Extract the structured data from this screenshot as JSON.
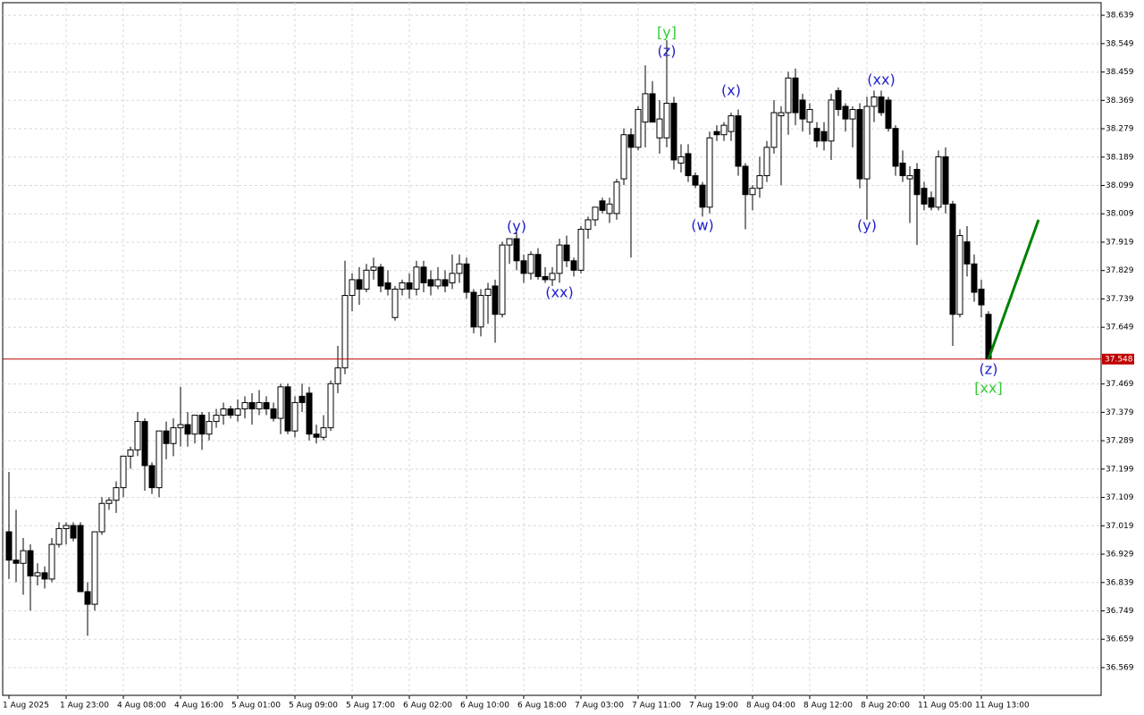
{
  "chart_data": {
    "type": "candlestick",
    "categories": [
      "1 Aug 2025",
      null,
      null,
      null,
      null,
      null,
      null,
      null,
      "1 Aug 23:00",
      null,
      null,
      null,
      null,
      null,
      null,
      null,
      "4 Aug 08:00",
      null,
      null,
      null,
      null,
      null,
      null,
      null,
      "4 Aug 16:00",
      null,
      null,
      null,
      null,
      null,
      null,
      null,
      "5 Aug 01:00",
      null,
      null,
      null,
      null,
      null,
      null,
      null,
      "5 Aug 09:00",
      null,
      null,
      null,
      null,
      null,
      null,
      null,
      "5 Aug 17:00",
      null,
      null,
      null,
      null,
      null,
      null,
      null,
      "6 Aug 02:00",
      null,
      null,
      null,
      null,
      null,
      null,
      null,
      "6 Aug 10:00",
      null,
      null,
      null,
      null,
      null,
      null,
      null,
      "6 Aug 18:00",
      null,
      null,
      null,
      null,
      null,
      null,
      null,
      "7 Aug 03:00",
      null,
      null,
      null,
      null,
      null,
      null,
      null,
      "7 Aug 11:00",
      null,
      null,
      null,
      null,
      null,
      null,
      null,
      "7 Aug 19:00",
      null,
      null,
      null,
      null,
      null,
      null,
      null,
      "8 Aug 04:00",
      null,
      null,
      null,
      null,
      null,
      null,
      null,
      "8 Aug 12:00",
      null,
      null,
      null,
      null,
      null,
      null,
      null,
      "8 Aug 20:00",
      null,
      null,
      null,
      null,
      null,
      null,
      null,
      "11 Aug 05:00",
      null,
      null,
      null,
      null,
      null,
      null,
      null,
      "11 Aug 13:00",
      null
    ],
    "open": [
      37.0,
      36.91,
      36.9,
      36.94,
      36.86,
      36.87,
      36.85,
      36.96,
      37.01,
      37.02,
      37.02,
      36.81,
      36.77,
      37.0,
      37.09,
      37.1,
      37.14,
      37.24,
      37.26,
      37.35,
      37.21,
      37.14,
      37.32,
      37.28,
      37.33,
      37.34,
      37.31,
      37.37,
      37.31,
      37.35,
      37.37,
      37.39,
      37.37,
      37.39,
      37.41,
      37.39,
      37.41,
      37.39,
      37.36,
      37.46,
      37.32,
      37.43,
      37.44,
      37.31,
      37.3,
      37.33,
      37.47,
      37.52,
      37.75,
      37.8,
      37.77,
      37.83,
      37.84,
      37.79,
      37.68,
      37.77,
      37.79,
      37.77,
      37.84,
      37.8,
      37.78,
      37.8,
      37.79,
      37.82,
      37.85,
      37.76,
      37.65,
      37.75,
      37.78,
      37.69,
      37.91,
      37.93,
      37.86,
      37.82,
      37.88,
      37.81,
      37.8,
      37.82,
      37.91,
      37.86,
      37.83,
      37.96,
      37.99,
      38.05,
      38.01,
      38.01,
      38.12,
      38.26,
      38.22,
      38.3,
      38.39,
      38.25,
      38.25,
      38.36,
      38.17,
      38.2,
      38.13,
      38.1,
      38.03,
      38.27,
      38.26,
      38.27,
      38.32,
      38.16,
      38.07,
      38.09,
      38.13,
      38.22,
      38.32,
      38.33,
      38.44,
      38.37,
      38.3,
      38.28,
      38.27,
      38.24,
      38.4,
      38.35,
      38.31,
      38.34,
      38.12,
      38.35,
      38.38,
      38.37,
      38.28,
      38.17,
      38.12,
      38.15,
      38.09,
      38.06,
      38.03,
      38.19,
      38.04,
      37.69,
      37.92,
      37.85,
      37.77,
      37.69
    ],
    "high": [
      37.19,
      37.07,
      36.98,
      36.96,
      36.9,
      36.89,
      36.98,
      37.03,
      37.03,
      37.03,
      37.03,
      36.84,
      37.0,
      37.11,
      37.11,
      37.16,
      37.24,
      37.27,
      37.38,
      37.36,
      37.22,
      37.32,
      37.35,
      37.36,
      37.46,
      37.38,
      37.37,
      37.38,
      37.38,
      37.39,
      37.41,
      37.4,
      37.42,
      37.43,
      37.44,
      37.45,
      37.43,
      37.41,
      37.47,
      37.47,
      37.43,
      37.47,
      37.46,
      37.34,
      37.37,
      37.48,
      37.59,
      37.86,
      37.82,
      37.84,
      37.85,
      37.87,
      37.85,
      37.83,
      37.78,
      37.8,
      37.82,
      37.86,
      37.86,
      37.83,
      37.84,
      37.83,
      37.88,
      37.88,
      37.87,
      37.77,
      37.77,
      37.79,
      37.8,
      37.92,
      37.93,
      37.95,
      37.88,
      37.89,
      37.9,
      37.84,
      37.84,
      37.93,
      37.94,
      37.87,
      37.97,
      38.0,
      38.03,
      38.06,
      38.06,
      38.12,
      38.28,
      38.28,
      38.35,
      38.48,
      38.43,
      38.37,
      38.56,
      38.38,
      38.23,
      38.23,
      38.14,
      38.11,
      38.27,
      38.29,
      38.3,
      38.33,
      38.34,
      38.17,
      38.1,
      38.19,
      38.24,
      38.37,
      38.35,
      38.46,
      38.47,
      38.39,
      38.36,
      38.3,
      38.3,
      38.39,
      38.41,
      38.36,
      38.35,
      38.36,
      38.38,
      38.4,
      38.4,
      38.38,
      38.29,
      38.21,
      38.16,
      38.17,
      38.11,
      38.08,
      38.21,
      38.22,
      38.05,
      37.96,
      37.97,
      37.88,
      37.8,
      37.7
    ],
    "low": [
      36.85,
      36.84,
      36.8,
      36.75,
      36.83,
      36.82,
      36.84,
      36.95,
      36.96,
      36.97,
      36.81,
      36.67,
      36.75,
      36.99,
      37.07,
      37.06,
      37.11,
      37.2,
      37.24,
      37.13,
      37.12,
      37.11,
      37.23,
      37.24,
      37.27,
      37.27,
      37.28,
      37.26,
      37.29,
      37.33,
      37.34,
      37.36,
      37.35,
      37.36,
      37.34,
      37.37,
      37.37,
      37.35,
      37.31,
      37.31,
      37.3,
      37.38,
      37.29,
      37.28,
      37.29,
      37.32,
      37.44,
      37.5,
      37.7,
      37.72,
      37.76,
      37.8,
      37.76,
      37.75,
      37.67,
      37.75,
      37.74,
      37.75,
      37.76,
      37.75,
      37.77,
      37.76,
      37.77,
      37.79,
      37.74,
      37.63,
      37.62,
      37.66,
      37.6,
      37.68,
      37.85,
      37.83,
      37.79,
      37.8,
      37.8,
      37.79,
      37.78,
      37.79,
      37.84,
      37.81,
      37.82,
      37.93,
      37.97,
      38.01,
      37.98,
      37.99,
      38.1,
      37.87,
      38.21,
      38.22,
      38.3,
      38.2,
      38.22,
      38.15,
      38.14,
      38.11,
      38.09,
      38.0,
      38.01,
      38.24,
      38.24,
      38.24,
      38.13,
      37.96,
      38.02,
      38.06,
      38.11,
      38.2,
      38.1,
      38.26,
      38.29,
      38.27,
      38.26,
      38.22,
      38.21,
      38.18,
      38.32,
      38.27,
      38.22,
      38.09,
      37.99,
      38.3,
      38.32,
      38.27,
      38.13,
      38.11,
      37.98,
      37.91,
      38.02,
      38.02,
      38.02,
      38.01,
      37.59,
      37.68,
      37.81,
      37.73,
      37.68,
      37.548
    ],
    "close": [
      36.91,
      36.9,
      36.94,
      36.86,
      36.87,
      36.85,
      36.96,
      37.01,
      37.02,
      36.98,
      36.81,
      36.77,
      37.0,
      37.09,
      37.1,
      37.14,
      37.24,
      37.26,
      37.35,
      37.21,
      37.14,
      37.32,
      37.28,
      37.33,
      37.34,
      37.31,
      37.37,
      37.31,
      37.35,
      37.37,
      37.39,
      37.37,
      37.39,
      37.41,
      37.39,
      37.41,
      37.39,
      37.36,
      37.46,
      37.32,
      37.41,
      37.41,
      37.31,
      37.3,
      37.33,
      37.47,
      37.52,
      37.75,
      37.8,
      37.77,
      37.83,
      37.84,
      37.78,
      37.77,
      37.77,
      37.79,
      37.77,
      37.84,
      37.79,
      37.78,
      37.8,
      37.78,
      37.82,
      37.85,
      37.76,
      37.65,
      37.75,
      37.77,
      37.69,
      37.91,
      37.93,
      37.86,
      37.82,
      37.88,
      37.81,
      37.8,
      37.82,
      37.91,
      37.86,
      37.83,
      37.96,
      37.99,
      38.03,
      38.02,
      38.04,
      38.11,
      38.26,
      38.22,
      38.34,
      38.39,
      38.3,
      38.31,
      38.36,
      38.18,
      38.19,
      38.13,
      38.1,
      38.03,
      38.25,
      38.26,
      38.29,
      38.32,
      38.16,
      38.07,
      38.09,
      38.13,
      38.22,
      38.33,
      38.33,
      38.44,
      38.33,
      38.31,
      38.34,
      38.24,
      38.24,
      38.37,
      38.34,
      38.31,
      38.34,
      38.12,
      38.35,
      38.38,
      38.33,
      38.28,
      38.16,
      38.13,
      38.13,
      38.07,
      38.04,
      38.03,
      38.19,
      38.04,
      37.69,
      37.94,
      37.85,
      37.76,
      37.72,
      37.548
    ],
    "up_color": "#ffffff",
    "down_color": "#000000",
    "wick_color": "#000000",
    "ylim": [
      36.481,
      38.679
    ],
    "yticks": [
      36.569,
      36.659,
      36.749,
      36.839,
      36.929,
      37.019,
      37.109,
      37.199,
      37.289,
      37.379,
      37.469,
      37.649,
      37.739,
      37.829,
      37.919,
      38.009,
      38.099,
      38.189,
      38.279,
      38.369,
      38.459,
      38.549,
      38.639
    ],
    "grid": true,
    "current_price": {
      "value": 37.548,
      "color": "#c00000"
    },
    "projection": {
      "x": [
        137,
        144
      ],
      "values": [
        37.548,
        37.99
      ],
      "color": "#008000"
    },
    "annotations": [
      {
        "text": "[y]",
        "index": 92,
        "value": 38.582,
        "color": "#32cd32"
      },
      {
        "text": "(z)",
        "index": 92,
        "value": 38.523,
        "color": "#1e1ec8"
      },
      {
        "text": "(y)",
        "index": 71,
        "value": 37.967,
        "color": "#1e1ec8"
      },
      {
        "text": "(xx)",
        "index": 77,
        "value": 37.757,
        "color": "#1e1ec8"
      },
      {
        "text": "(w)",
        "index": 97,
        "value": 37.97,
        "color": "#1e1ec8"
      },
      {
        "text": "(x)",
        "index": 101,
        "value": 38.398,
        "color": "#1e1ec8"
      },
      {
        "text": "(xx)",
        "index": 122,
        "value": 38.432,
        "color": "#1e1ec8"
      },
      {
        "text": "(y)",
        "index": 120,
        "value": 37.97,
        "color": "#1e1ec8"
      },
      {
        "text": "(z)",
        "index": 137,
        "value": 37.513,
        "color": "#1e1ec8"
      },
      {
        "text": "[xx]",
        "index": 137,
        "value": 37.454,
        "color": "#32cd32"
      }
    ]
  }
}
